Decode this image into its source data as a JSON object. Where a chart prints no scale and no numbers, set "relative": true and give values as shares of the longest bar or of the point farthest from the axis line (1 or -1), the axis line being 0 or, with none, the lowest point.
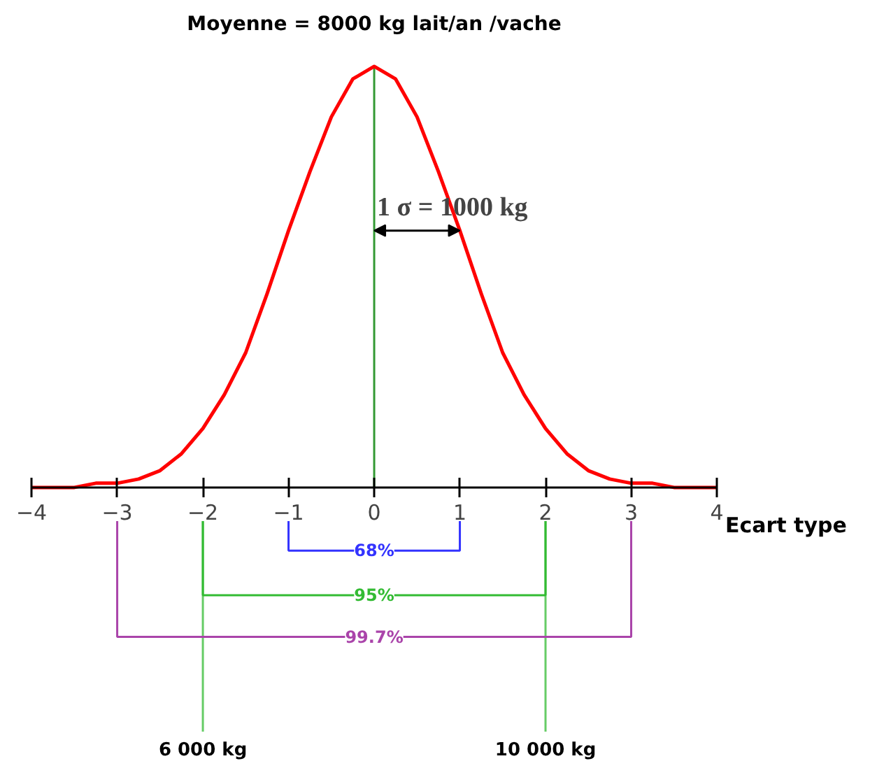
{
  "chart_data": {
    "type": "line",
    "title": "Moyenne = 8000 kg lait/an /vache",
    "xlabel": "Ecart type",
    "relative": true,
    "x": [
      -4,
      -3.75,
      -3.5,
      -3.25,
      -3,
      -2.75,
      -2.5,
      -2.25,
      -2,
      -1.75,
      -1.5,
      -1.25,
      -1,
      -0.75,
      -0.5,
      -0.25,
      0,
      0.25,
      0.5,
      0.75,
      1,
      1.25,
      1.5,
      1.75,
      2,
      2.25,
      2.5,
      2.75,
      3,
      3.25,
      3.5,
      3.75,
      4
    ],
    "series": [
      {
        "color": "#ff0000",
        "values": [
          0,
          0,
          0,
          0.01,
          0.01,
          0.02,
          0.04,
          0.08,
          0.14,
          0.22,
          0.32,
          0.46,
          0.61,
          0.75,
          0.88,
          0.97,
          1,
          0.97,
          0.88,
          0.75,
          0.61,
          0.46,
          0.32,
          0.22,
          0.14,
          0.08,
          0.04,
          0.02,
          0.01,
          0.01,
          0,
          0,
          0
        ]
      }
    ],
    "xlim": [
      -4,
      4
    ],
    "xticks": [
      -4,
      -3,
      -2,
      -1,
      0,
      1,
      2,
      3,
      4
    ],
    "ref_lines": [
      {
        "axis": "x",
        "value": 0,
        "label": null,
        "color": "#339933"
      },
      {
        "axis": "x",
        "value": -2,
        "label": "6 000 kg",
        "color": "#66cc66"
      },
      {
        "axis": "x",
        "value": 2,
        "label": "10 000 kg",
        "color": "#66cc66"
      }
    ],
    "annotations": [
      {
        "text": "1 σ = 1000 kg",
        "x": 1,
        "y": 0.61
      },
      "68%",
      "95%",
      "99.7%"
    ],
    "grid": false,
    "marker": "none",
    "line_style": "solid"
  }
}
